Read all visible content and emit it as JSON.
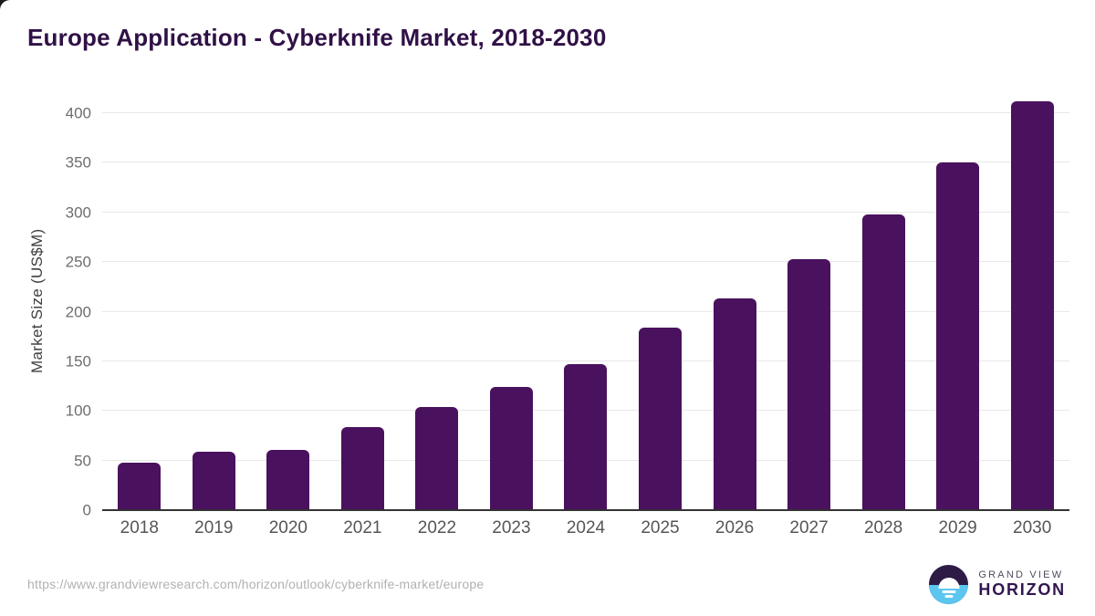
{
  "title": "Europe Application - Cyberknife Market, 2018-2030",
  "source_url": "https://www.grandviewresearch.com/horizon/outlook/cyberknife-market/europe",
  "logo": {
    "brand_top": "GRAND VIEW",
    "brand_bottom": "HORIZON",
    "icon": "horizon-sunset-circle-icon",
    "icon_top_color": "#2e1b45",
    "icon_bottom_color": "#5bc6f0"
  },
  "colors": {
    "title": "#301146",
    "bar": "#4a115e",
    "gridline": "#e8e8e8",
    "axis_line": "#333333",
    "tick_label": "#6e6e6e",
    "x_label": "#565656",
    "url_text": "#b1b1b1"
  },
  "chart_data": {
    "type": "bar",
    "title": "Europe Application - Cyberknife Market, 2018-2030",
    "categories": [
      "2018",
      "2019",
      "2020",
      "2021",
      "2022",
      "2023",
      "2024",
      "2025",
      "2026",
      "2027",
      "2028",
      "2029",
      "2030"
    ],
    "values": [
      48,
      59,
      61,
      84,
      104,
      124,
      147,
      184,
      213,
      253,
      298,
      350,
      412
    ],
    "xlabel": "",
    "ylabel": "Market Size (US$M)",
    "ylim": [
      0,
      422
    ],
    "yticks": [
      0,
      50,
      100,
      150,
      200,
      250,
      300,
      350,
      400
    ],
    "grid": "horizontal",
    "legend": "none",
    "bar_color": "#4a115e"
  }
}
